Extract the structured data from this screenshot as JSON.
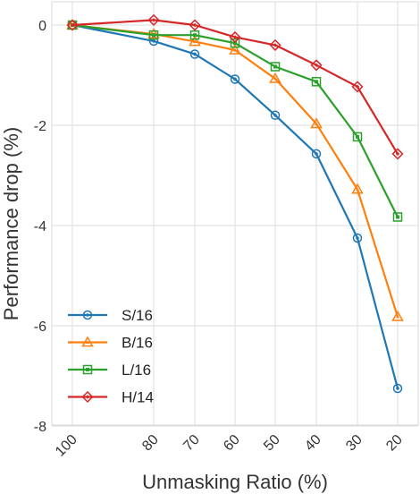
{
  "chart_data": {
    "type": "line",
    "xlabel": "Unmasking Ratio (%)",
    "ylabel": "Performance drop (%)",
    "x": [
      100,
      80,
      70,
      60,
      50,
      40,
      30,
      20
    ],
    "x_tick_labels": [
      "100",
      "80",
      "70",
      "60",
      "50",
      "40",
      "30",
      "20"
    ],
    "y_ticks": [
      0,
      -2,
      -4,
      -6,
      -8
    ],
    "y_tick_labels": [
      "0",
      "-2",
      "-4",
      "-6",
      "-8"
    ],
    "ylim": [
      -8,
      0.5
    ],
    "grid": true,
    "legend_position": "bottom-left",
    "series": [
      {
        "name": "S/16",
        "marker": "circle",
        "color": "#1f77b4",
        "values": [
          0,
          -0.32,
          -0.58,
          -1.08,
          -1.8,
          -2.57,
          -4.25,
          -7.25
        ]
      },
      {
        "name": "B/16",
        "marker": "triangle",
        "color": "#ff7f0e",
        "values": [
          0,
          -0.18,
          -0.33,
          -0.5,
          -1.07,
          -1.97,
          -3.28,
          -5.82
        ]
      },
      {
        "name": "L/16",
        "marker": "square",
        "color": "#2ca02c",
        "values": [
          0,
          -0.2,
          -0.2,
          -0.36,
          -0.83,
          -1.13,
          -2.23,
          -3.83
        ]
      },
      {
        "name": "H/14",
        "marker": "diamond",
        "color": "#d62728",
        "values": [
          0,
          0.1,
          0,
          -0.24,
          -0.4,
          -0.8,
          -1.23,
          -2.57
        ]
      }
    ]
  }
}
